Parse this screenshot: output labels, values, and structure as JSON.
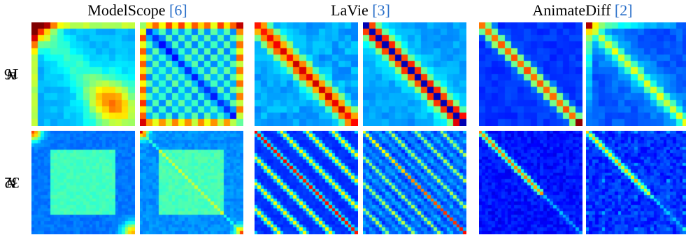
{
  "columns": [
    {
      "name": "ModelScope",
      "cite": "[6]"
    },
    {
      "name": "LaVie",
      "cite": "[3]"
    },
    {
      "name": "AnimateDiff",
      "cite": "[2]"
    }
  ],
  "rows": [
    {
      "var": "N",
      "eq": " = ",
      "value": "16"
    },
    {
      "var": "N",
      "eq": " = ",
      "value": "32"
    }
  ],
  "panels": [
    {
      "model": "ModelScope",
      "N": 16,
      "pattern": "block-16",
      "colormap": "jet"
    },
    {
      "model": "ModelScope",
      "N": 16,
      "pattern": "checker-16",
      "colormap": "jet"
    },
    {
      "model": "LaVie",
      "N": 16,
      "pattern": "band-16",
      "colormap": "jet"
    },
    {
      "model": "LaVie",
      "N": 16,
      "pattern": "thin-band-16",
      "colormap": "jet"
    },
    {
      "model": "AnimateDiff",
      "N": 16,
      "pattern": "soft-band-16",
      "colormap": "jet"
    },
    {
      "model": "AnimateDiff",
      "N": 16,
      "pattern": "faint-band-16",
      "colormap": "jet"
    },
    {
      "model": "ModelScope",
      "N": 32,
      "pattern": "block-32",
      "colormap": "jet"
    },
    {
      "model": "ModelScope",
      "N": 32,
      "pattern": "block-diag-32",
      "colormap": "jet"
    },
    {
      "model": "LaVie",
      "N": 32,
      "pattern": "periodic-32",
      "colormap": "jet"
    },
    {
      "model": "LaVie",
      "N": 32,
      "pattern": "periodic-diag-32",
      "colormap": "jet"
    },
    {
      "model": "AnimateDiff",
      "N": 32,
      "pattern": "half-diag-32",
      "colormap": "jet"
    },
    {
      "model": "AnimateDiff",
      "N": 32,
      "pattern": "half-diag-faint-32",
      "colormap": "jet"
    }
  ]
}
